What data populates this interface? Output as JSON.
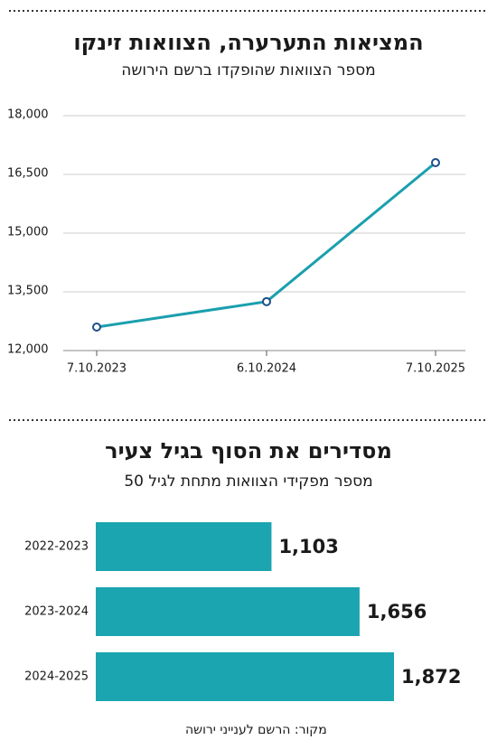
{
  "chart_data": [
    {
      "type": "line",
      "title": "המציאות התערערה, הצוואות זינקו",
      "subtitle": "מספר הצוואות שהופקדו ברשם הירושה",
      "categories": [
        "7.10.2023",
        "6.10.2024",
        "7.10.2025"
      ],
      "values": [
        12600,
        13250,
        16800
      ],
      "color": "#1a9fae",
      "marker_color": "#1d4f8a",
      "ylim": [
        12000,
        18000
      ],
      "yticks": [
        {
          "value": 12000,
          "label": "12,000"
        },
        {
          "value": 13500,
          "label": "13,500"
        },
        {
          "value": 15000,
          "label": "15,000"
        },
        {
          "value": 16500,
          "label": "16,500"
        },
        {
          "value": 18000,
          "label": "18,000"
        }
      ],
      "grid": true
    },
    {
      "type": "hbar",
      "title": "מסדירים את הסוף בגיל צעיר",
      "subtitle": "מספר מפקידי הצוואות מתחת לגיל 50",
      "categories": [
        "2022-2023",
        "2023-2024",
        "2024-2025"
      ],
      "values": [
        1103,
        1656,
        1872
      ],
      "value_labels": [
        "1,103",
        "1,656",
        "1,872"
      ],
      "color": "#1aa5b0"
    }
  ],
  "source": "מקור: הרשם לענייני ירושה"
}
